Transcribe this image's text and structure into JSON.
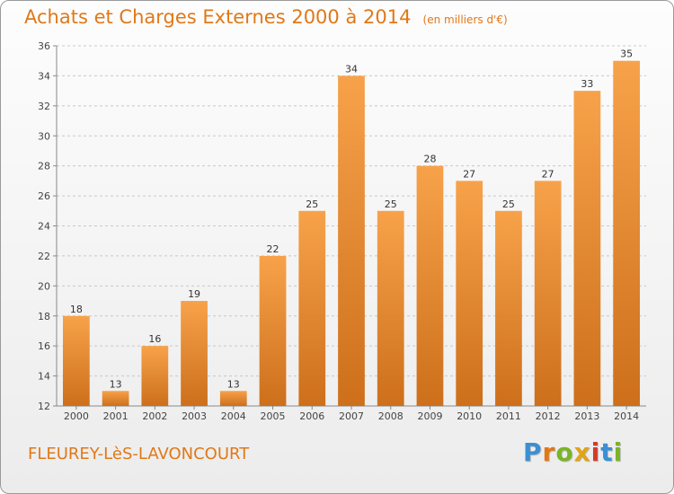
{
  "title": "Achats et Charges Externes 2000 à 2014",
  "subtitle": "(en milliers d'€)",
  "location": "FLEUREY-LèS-LAVONCOURT",
  "brand": {
    "text": "Proxiti",
    "letter_colors": [
      "#3b8fd4",
      "#e07818",
      "#7ab428",
      "#e0a418",
      "#d63a2a",
      "#3b8fd4",
      "#7ab428"
    ]
  },
  "colors": {
    "bar_top": "#f7a24a",
    "bar_bottom": "#cd6f1b",
    "accent": "#e07818"
  },
  "chart_data": {
    "type": "bar",
    "categories": [
      "2000",
      "2001",
      "2002",
      "2003",
      "2004",
      "2005",
      "2006",
      "2007",
      "2008",
      "2009",
      "2010",
      "2011",
      "2012",
      "2013",
      "2014"
    ],
    "values": [
      18,
      13,
      16,
      19,
      13,
      22,
      25,
      34,
      25,
      28,
      27,
      25,
      27,
      33,
      35
    ],
    "title": "Achats et Charges Externes 2000 à 2014",
    "subtitle": "(en milliers d'€)",
    "xlabel": "",
    "ylabel": "",
    "ylim": [
      12,
      36
    ],
    "yticks": [
      12,
      14,
      16,
      18,
      20,
      22,
      24,
      26,
      28,
      30,
      32,
      34,
      36
    ],
    "grid": "horizontal, dashed",
    "data_labels": true
  }
}
